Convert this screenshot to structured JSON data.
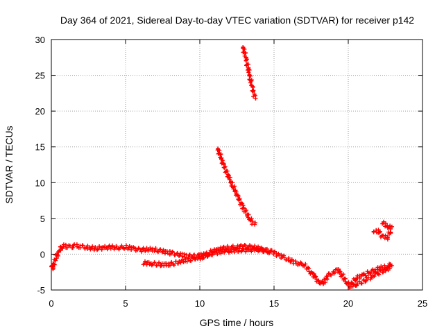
{
  "chart_data": {
    "type": "scatter",
    "title": "Day 364 of 2021, Sidereal Day-to-day VTEC variation (SDTVAR) for receiver p142",
    "xlabel": "GPS time / hours",
    "ylabel": "SDTVAR / TECUs",
    "xlim": [
      0,
      25
    ],
    "ylim": [
      -5,
      30
    ],
    "xticks": [
      "0",
      "5",
      "10",
      "15",
      "20",
      "25"
    ],
    "yticks": [
      "-5",
      "0",
      "5",
      "10",
      "15",
      "20",
      "25",
      "30"
    ],
    "grid": true,
    "marker": "+",
    "color": "#ff0000",
    "series": [
      {
        "values": [
          [
            0.0,
            -1.5
          ],
          [
            0.1,
            -2.0
          ],
          [
            0.2,
            -1.0
          ],
          [
            0.3,
            -0.5
          ],
          [
            0.4,
            0.0
          ],
          [
            0.5,
            0.4
          ],
          [
            0.6,
            0.8
          ],
          [
            0.8,
            1.2
          ],
          [
            1.0,
            1.1
          ],
          [
            1.3,
            1.0
          ],
          [
            1.6,
            1.2
          ],
          [
            2.0,
            1.1
          ],
          [
            2.5,
            0.9
          ],
          [
            3.0,
            0.8
          ],
          [
            3.5,
            0.9
          ],
          [
            4.0,
            1.0
          ],
          [
            4.5,
            0.9
          ],
          [
            5.0,
            1.0
          ],
          [
            5.5,
            0.8
          ],
          [
            6.0,
            0.6
          ],
          [
            6.5,
            0.7
          ],
          [
            7.0,
            0.6
          ],
          [
            7.5,
            0.4
          ],
          [
            8.0,
            0.2
          ],
          [
            8.5,
            0.0
          ],
          [
            9.0,
            -0.2
          ],
          [
            9.5,
            -0.3
          ],
          [
            10.0,
            -0.2
          ],
          [
            10.5,
            0.1
          ],
          [
            11.0,
            0.5
          ],
          [
            11.5,
            0.8
          ],
          [
            12.0,
            0.9
          ],
          [
            12.5,
            1.0
          ],
          [
            13.0,
            1.1
          ],
          [
            13.5,
            1.0
          ],
          [
            14.0,
            0.8
          ],
          [
            14.5,
            0.5
          ],
          [
            15.0,
            0.2
          ],
          [
            15.5,
            -0.3
          ],
          [
            16.0,
            -0.8
          ],
          [
            16.5,
            -1.2
          ],
          [
            17.0,
            -1.5
          ],
          [
            17.5,
            -2.5
          ],
          [
            18.0,
            -3.8
          ],
          [
            18.3,
            -4.2
          ],
          [
            18.6,
            -3.0
          ],
          [
            19.0,
            -2.5
          ],
          [
            19.3,
            -2.2
          ],
          [
            19.6,
            -3.0
          ],
          [
            20.0,
            -4.3
          ],
          [
            20.3,
            -4.0
          ],
          [
            20.6,
            -3.2
          ],
          [
            21.0,
            -3.0
          ],
          [
            21.5,
            -2.5
          ],
          [
            22.0,
            -2.0
          ],
          [
            22.5,
            -1.8
          ],
          [
            22.9,
            -1.5
          ]
        ]
      },
      {
        "values": [
          [
            6.2,
            -1.2
          ],
          [
            6.7,
            -1.3
          ],
          [
            7.2,
            -1.4
          ],
          [
            7.7,
            -1.5
          ],
          [
            8.2,
            -1.3
          ],
          [
            8.7,
            -1.0
          ],
          [
            9.2,
            -0.8
          ],
          [
            9.7,
            -0.6
          ],
          [
            10.2,
            -0.4
          ],
          [
            10.7,
            0.0
          ],
          [
            11.2,
            0.3
          ],
          [
            11.7,
            0.4
          ],
          [
            12.2,
            0.5
          ],
          [
            12.7,
            0.6
          ],
          [
            13.2,
            0.6
          ],
          [
            13.7,
            0.7
          ],
          [
            14.2,
            0.6
          ],
          [
            14.7,
            0.3
          ]
        ]
      },
      {
        "values": [
          [
            20.1,
            -4.5
          ],
          [
            20.5,
            -4.2
          ],
          [
            21.0,
            -3.8
          ],
          [
            21.5,
            -3.2
          ],
          [
            22.0,
            -2.6
          ],
          [
            22.5,
            -2.2
          ],
          [
            22.9,
            -1.8
          ]
        ]
      },
      {
        "values": [
          [
            12.9,
            29.0
          ],
          [
            13.1,
            27.5
          ],
          [
            13.3,
            25.5
          ],
          [
            13.5,
            23.5
          ],
          [
            13.7,
            22.0
          ]
        ]
      },
      {
        "values": [
          [
            11.2,
            14.8
          ],
          [
            11.6,
            12.5
          ],
          [
            12.0,
            10.5
          ],
          [
            12.5,
            8.3
          ],
          [
            13.0,
            6.2
          ],
          [
            13.5,
            4.5
          ],
          [
            13.7,
            4.2
          ]
        ]
      },
      {
        "values": [
          [
            22.3,
            4.5
          ],
          [
            22.6,
            4.0
          ],
          [
            22.9,
            3.6
          ],
          [
            22.8,
            3.0
          ],
          [
            22.6,
            2.3
          ],
          [
            22.3,
            2.5
          ],
          [
            22.0,
            3.2
          ],
          [
            21.7,
            3.3
          ]
        ]
      }
    ]
  }
}
